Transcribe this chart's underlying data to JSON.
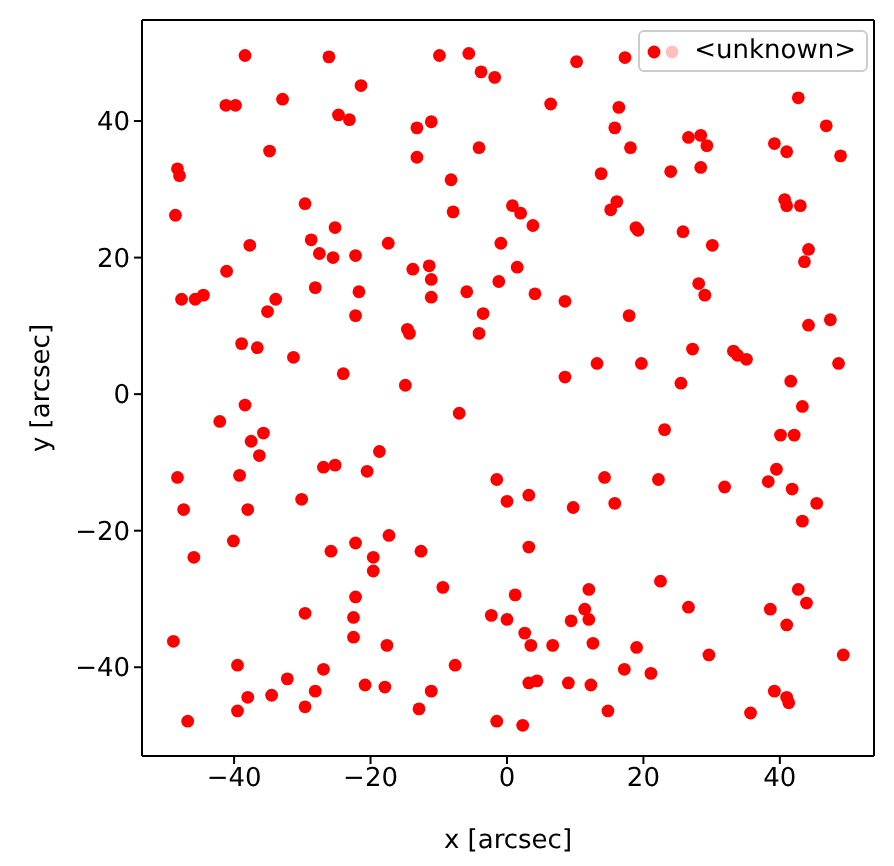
{
  "chart_data": {
    "type": "scatter",
    "xlabel": "x [arcsec]",
    "ylabel": "y [arcsec]",
    "xlim": [
      -53.5,
      53.8
    ],
    "ylim": [
      -53,
      54.8
    ],
    "xticks": [
      -40,
      -20,
      0,
      20,
      40
    ],
    "yticks": [
      -40,
      -20,
      0,
      20,
      40
    ],
    "legend": "top right",
    "marker": "circle",
    "series": [
      {
        "name": "<unknown>",
        "color": "#ff0000",
        "x": [
          -38.4,
          -26.1,
          -21.4,
          -41.2,
          -39.8,
          -32.9,
          -24.7,
          -23.1,
          -34.8,
          -48.3,
          -48.0,
          -48.6,
          -29.6,
          -25.2,
          -28.7,
          -27.5,
          -25.5,
          -22.2,
          -17.4,
          -37.7,
          -41.1,
          -47.7,
          -45.7,
          -44.5,
          -33.9,
          -35.1,
          -28.1,
          -21.7,
          -22.2,
          -38.9,
          -36.6,
          -31.3,
          -24.0,
          -38.4,
          -9.9,
          -5.6,
          -3.8,
          -1.8,
          10.2,
          17.3,
          6.4,
          16.4,
          15.8,
          18.1,
          -13.2,
          -11.1,
          -13.2,
          -4.1,
          -8.2,
          13.8,
          16.1,
          15.2,
          -7.9,
          0.8,
          2.0,
          3.8,
          18.9,
          19.2,
          -0.9,
          -13.8,
          -11.4,
          -11.1,
          -11.1,
          1.5,
          -1.2,
          -5.9,
          4.1,
          8.5,
          -3.5,
          -14.6,
          -14.3,
          -4.1,
          17.9,
          13.2,
          8.5,
          -14.9,
          19.7,
          -7.0,
          42.7,
          46.8,
          48.9,
          26.6,
          28.4,
          29.3,
          24.0,
          28.4,
          39.2,
          41.0,
          40.7,
          41.0,
          43.0,
          25.8,
          30.1,
          44.2,
          43.6,
          28.1,
          29.0,
          44.2,
          47.4,
          27.2,
          33.2,
          33.8,
          35.1,
          25.5,
          41.6,
          48.6,
          43.3,
          -42.1,
          -37.5,
          -35.7,
          -36.3,
          -48.3,
          -39.2,
          -47.4,
          -38.0,
          -45.9,
          -40.1,
          -26.9,
          -25.2,
          -18.7,
          -20.5,
          -30.1,
          -25.8,
          -22.2,
          -19.6,
          -19.6,
          -17.3,
          -22.2,
          -22.5,
          -22.5,
          -29.6,
          -17.6,
          -48.9,
          -39.5,
          -26.9,
          -32.2,
          -38.0,
          -34.5,
          -28.1,
          -20.8,
          -17.9,
          -39.5,
          -29.6,
          -46.8,
          -1.5,
          0.0,
          3.2,
          9.7,
          14.3,
          15.8,
          3.2,
          -12.6,
          -9.4,
          1.2,
          -2.3,
          0.0,
          2.6,
          3.5,
          6.7,
          9.4,
          11.4,
          12.0,
          12.0,
          12.6,
          19.0,
          17.2,
          12.3,
          14.8,
          9.0,
          3.2,
          4.4,
          -7.6,
          -11.1,
          -12.9,
          -1.5,
          2.3,
          23.1,
          40.1,
          42.1,
          39.5,
          38.3,
          41.8,
          45.4,
          43.3,
          22.2,
          31.9,
          22.5,
          26.6,
          42.7,
          43.9,
          38.6,
          41.0,
          21.1,
          29.6,
          49.3,
          39.2,
          41.0,
          41.3,
          35.7
        ],
        "values": [
          49.6,
          49.4,
          45.2,
          42.3,
          42.3,
          43.2,
          40.9,
          40.2,
          35.6,
          33.0,
          32.0,
          26.2,
          27.9,
          24.4,
          22.6,
          20.6,
          20.0,
          20.3,
          22.1,
          21.8,
          18.0,
          13.9,
          13.9,
          14.5,
          13.9,
          12.1,
          15.6,
          15.0,
          11.5,
          7.4,
          6.8,
          5.4,
          3.0,
          -1.6,
          49.6,
          49.9,
          47.2,
          46.4,
          48.7,
          49.3,
          42.5,
          42.0,
          39.0,
          36.1,
          39.0,
          39.9,
          34.7,
          36.1,
          31.4,
          32.3,
          28.2,
          27.0,
          26.7,
          27.6,
          26.5,
          24.7,
          24.4,
          24.0,
          22.1,
          18.3,
          18.8,
          16.8,
          14.2,
          18.6,
          16.5,
          15.0,
          14.7,
          13.6,
          11.8,
          9.5,
          8.9,
          8.9,
          11.5,
          4.5,
          2.5,
          1.3,
          4.5,
          -2.8,
          43.4,
          39.3,
          34.9,
          37.6,
          37.9,
          36.4,
          32.6,
          33.2,
          36.7,
          35.5,
          28.5,
          27.6,
          27.6,
          23.8,
          21.8,
          21.2,
          19.4,
          16.2,
          14.5,
          10.1,
          10.9,
          6.6,
          6.3,
          5.7,
          5.1,
          1.6,
          1.9,
          4.5,
          -1.8,
          -4.0,
          -6.9,
          -5.7,
          -9.0,
          -12.2,
          -11.9,
          -16.9,
          -16.9,
          -23.9,
          -21.5,
          -10.7,
          -10.4,
          -8.4,
          -11.3,
          -15.4,
          -23.0,
          -21.8,
          -23.9,
          -25.9,
          -20.7,
          -29.7,
          -32.7,
          -35.6,
          -32.1,
          -36.8,
          -36.2,
          -39.7,
          -40.3,
          -41.7,
          -44.4,
          -44.1,
          -43.5,
          -42.6,
          -42.9,
          -46.4,
          -45.8,
          -47.9,
          -12.5,
          -15.7,
          -14.8,
          -16.6,
          -12.2,
          -16.0,
          -22.4,
          -23.0,
          -28.3,
          -29.4,
          -32.4,
          -33.0,
          -35.0,
          -36.8,
          -36.8,
          -33.2,
          -31.5,
          -28.6,
          -33.0,
          -36.5,
          -37.1,
          -40.3,
          -42.6,
          -46.4,
          -42.3,
          -42.3,
          -42.0,
          -39.7,
          -43.5,
          -46.1,
          -47.9,
          -48.5,
          -5.2,
          -6.0,
          -6.0,
          -11.0,
          -12.8,
          -13.9,
          -16.0,
          -18.6,
          -12.5,
          -13.6,
          -27.4,
          -31.2,
          -28.6,
          -30.6,
          -31.5,
          -33.8,
          -40.9,
          -38.2,
          -38.2,
          -43.5,
          -44.4,
          -45.2,
          -46.7
        ]
      }
    ]
  }
}
